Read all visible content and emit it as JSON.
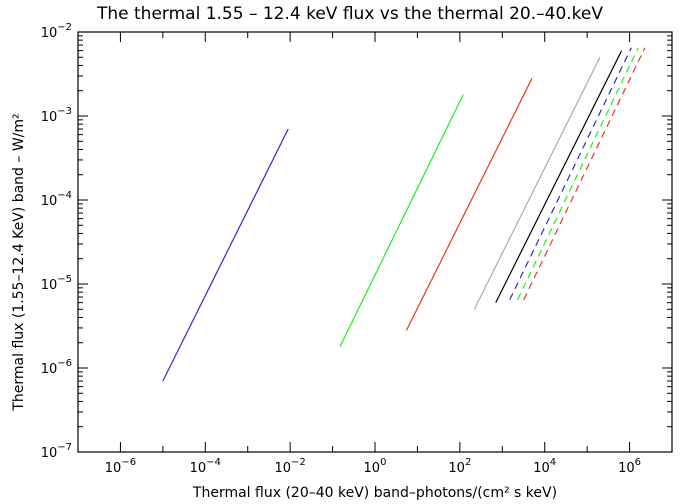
{
  "chart_data": {
    "type": "line",
    "title": "The thermal 1.55 – 12.4 keV flux vs the thermal 20.–40.keV",
    "xlabel": "Thermal flux (20–40 keV) band–photons/(cm² s keV)",
    "ylabel": "Thermal flux (1.55–12.4 KeV) band – W/m²",
    "xscale": "log",
    "yscale": "log",
    "xlim": [
      1e-07,
      10000000.0
    ],
    "ylim": [
      1e-07,
      0.01
    ],
    "grid": false,
    "x_ticks": [
      {
        "value": 1e-06,
        "base": "10",
        "exp": "−6"
      },
      {
        "value": 0.0001,
        "base": "10",
        "exp": "−4"
      },
      {
        "value": 0.01,
        "base": "10",
        "exp": "−2"
      },
      {
        "value": 1,
        "base": "10",
        "exp": "0"
      },
      {
        "value": 100.0,
        "base": "10",
        "exp": "2"
      },
      {
        "value": 10000.0,
        "base": "10",
        "exp": "4"
      },
      {
        "value": 1000000.0,
        "base": "10",
        "exp": "6"
      }
    ],
    "y_ticks": [
      {
        "value": 1e-07,
        "base": "10",
        "exp": "−7"
      },
      {
        "value": 1e-06,
        "base": "10",
        "exp": "−6"
      },
      {
        "value": 1e-05,
        "base": "10",
        "exp": "−5"
      },
      {
        "value": 0.0001,
        "base": "10",
        "exp": "−4"
      },
      {
        "value": 0.001,
        "base": "10",
        "exp": "−3"
      },
      {
        "value": 0.01,
        "base": "10",
        "exp": "−2"
      }
    ],
    "series": [
      {
        "color": "#2a2acf",
        "dash": false,
        "x": [
          1e-05,
          0.009
        ],
        "y": [
          7e-07,
          0.0007
        ]
      },
      {
        "color": "#22ee22",
        "dash": false,
        "x": [
          0.15,
          120
        ],
        "y": [
          1.8e-06,
          0.0018
        ]
      },
      {
        "color": "#ee3322",
        "dash": false,
        "x": [
          5.5,
          5000
        ],
        "y": [
          2.8e-06,
          0.0028
        ]
      },
      {
        "color": "#aaaaaa",
        "dash": false,
        "x": [
          220,
          200000
        ],
        "y": [
          5e-06,
          0.005
        ]
      },
      {
        "color": "#000000",
        "dash": false,
        "x": [
          700,
          650000
        ],
        "y": [
          6e-06,
          0.006
        ]
      },
      {
        "color": "#2a2acf",
        "dash": true,
        "x": [
          1500,
          1100000
        ],
        "y": [
          6.5e-06,
          0.0065
        ]
      },
      {
        "color": "#22ee22",
        "dash": true,
        "x": [
          2300,
          1600000
        ],
        "y": [
          6.5e-06,
          0.0065
        ]
      },
      {
        "color": "#ee3322",
        "dash": true,
        "x": [
          3200,
          2300000
        ],
        "y": [
          6.5e-06,
          0.0065
        ]
      }
    ]
  }
}
